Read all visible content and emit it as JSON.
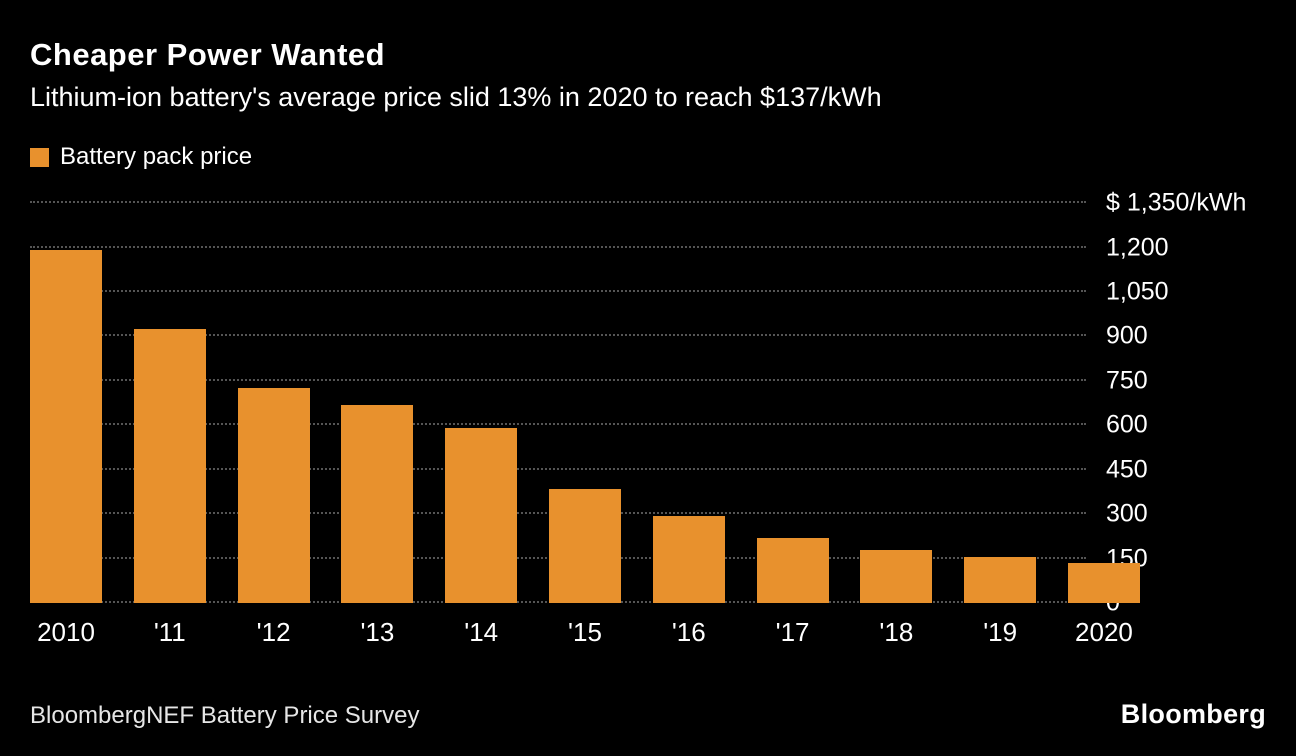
{
  "header": {
    "title": "Cheaper Power Wanted",
    "subtitle": "Lithium-ion battery's average price slid 13% in 2020 to reach $137/kWh"
  },
  "legend": {
    "label": "Battery pack price",
    "swatch_color": "#E8912D"
  },
  "chart_data": {
    "type": "bar",
    "title": "Cheaper Power Wanted",
    "categories": [
      "2010",
      "'11",
      "'12",
      "'13",
      "'14",
      "'15",
      "'16",
      "'17",
      "'18",
      "'19",
      "2020"
    ],
    "values": [
      1191,
      924,
      726,
      668,
      592,
      384,
      295,
      221,
      181,
      157,
      137
    ],
    "series_name": "Battery pack price",
    "xlabel": "",
    "ylabel": "$/kWh",
    "ylim": [
      0,
      1350
    ],
    "yticks": [
      0,
      150,
      300,
      450,
      600,
      750,
      900,
      1050,
      1200,
      1350
    ],
    "ytick_labels": [
      "0",
      "150",
      "300",
      "450",
      "600",
      "750",
      "900",
      "1,050",
      "1,200",
      "$ 1,350/kWh"
    ],
    "bar_color": "#E8912D",
    "background_color": "#000000",
    "grid": "dotted horizontal",
    "legend_position": "top-left",
    "ytick_side": "right"
  },
  "footer": {
    "source": "BloombergNEF Battery Price Survey",
    "brand": "Bloomberg"
  }
}
